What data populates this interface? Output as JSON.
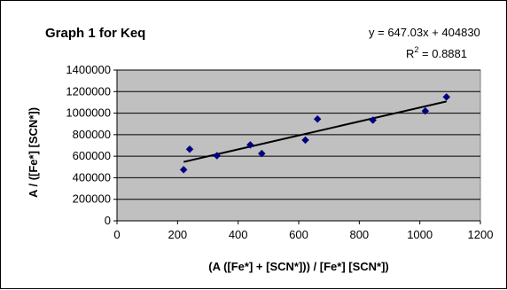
{
  "chart_data": {
    "type": "scatter",
    "title": "Graph 1 for Keq",
    "xlabel": "(A ([Fe*] + [SCN*])) / [Fe*] [SCN*])",
    "ylabel": "A / ([Fe*] [SCN*])",
    "xlim": [
      0,
      1200
    ],
    "ylim": [
      0,
      1400000
    ],
    "x_ticks": [
      0,
      200,
      400,
      600,
      800,
      1000,
      1200
    ],
    "y_ticks": [
      0,
      200000,
      400000,
      600000,
      800000,
      1000000,
      1200000,
      1400000
    ],
    "grid": "horizontal",
    "plot_background": "#c0c0c0",
    "series": [
      {
        "color": "#000080",
        "marker": "diamond",
        "x": [
          220,
          240,
          330,
          440,
          478,
          622,
          662,
          845,
          1018,
          1088
        ],
        "y": [
          475000,
          665000,
          605000,
          705000,
          625000,
          750000,
          945000,
          935000,
          1020000,
          1150000
        ]
      }
    ],
    "trendline": {
      "type": "linear",
      "slope": 647.03,
      "intercept": 404830,
      "x_range": [
        220,
        1088
      ],
      "color": "#000000",
      "equation_text": "y = 647.03x + 404830",
      "r2_prefix": "R",
      "r2_exponent": "2",
      "r2_suffix": " = 0.8881"
    }
  }
}
